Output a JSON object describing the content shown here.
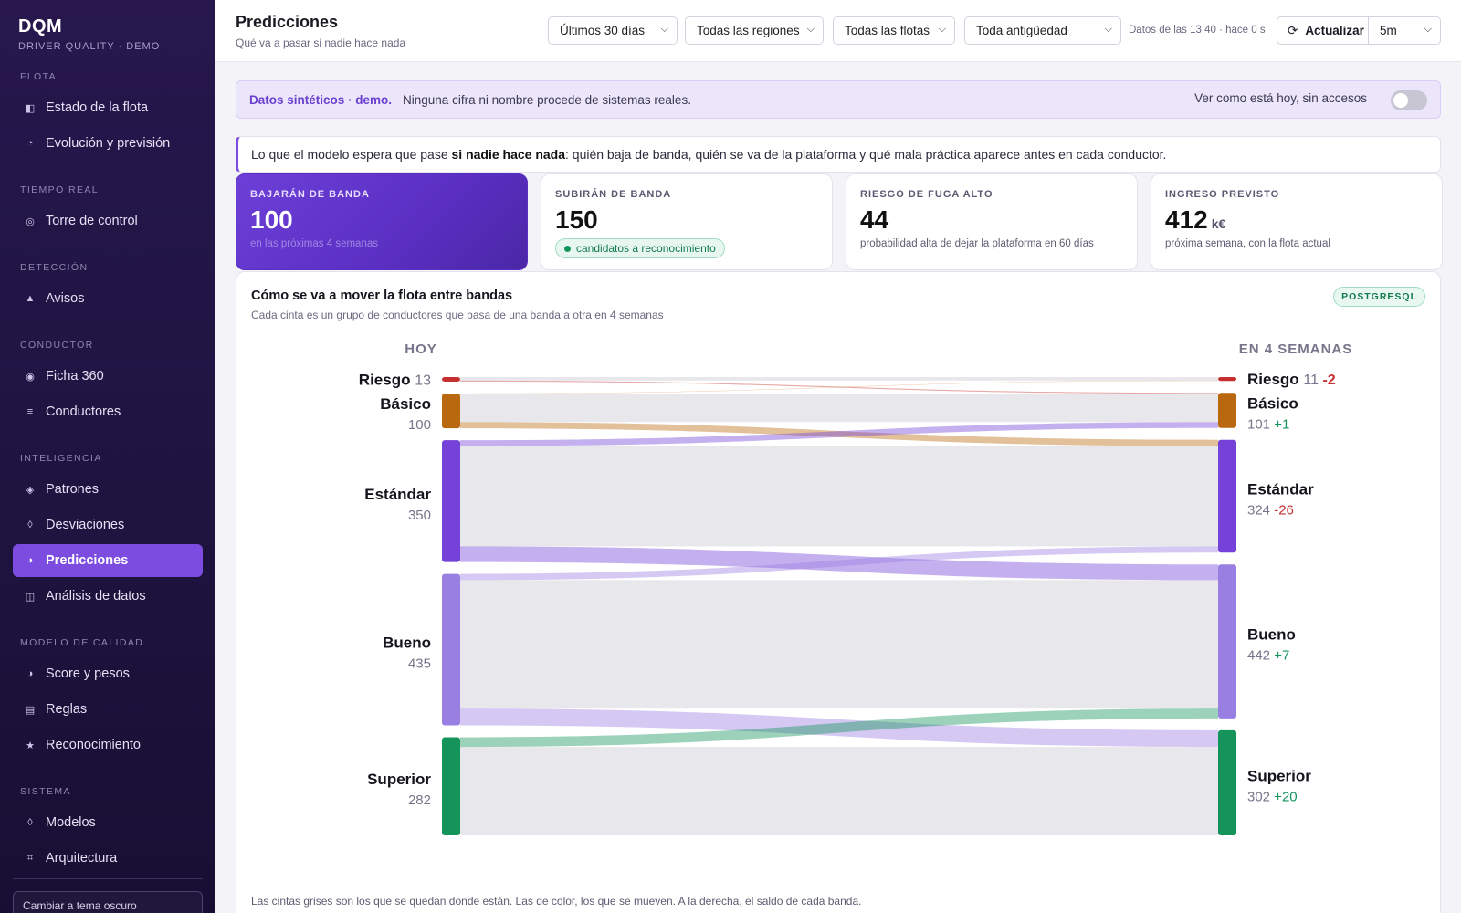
{
  "sidebar": {
    "brand": "DQM",
    "brand_sub": "DRIVER QUALITY · DEMO",
    "sections": [
      {
        "title": "FLOTA",
        "items": [
          {
            "label": "Estado de la flota",
            "icon": "panel-icon"
          },
          {
            "label": "Evolución y previsión",
            "icon": "pie-icon"
          }
        ]
      },
      {
        "title": "TIEMPO REAL",
        "items": [
          {
            "label": "Torre de control",
            "icon": "target-icon"
          }
        ]
      },
      {
        "title": "DETECCIÓN",
        "items": [
          {
            "label": "Avisos",
            "icon": "triangle-icon"
          }
        ]
      },
      {
        "title": "CONDUCTOR",
        "items": [
          {
            "label": "Ficha 360",
            "icon": "record-icon"
          },
          {
            "label": "Conductores",
            "icon": "list-icon"
          }
        ]
      },
      {
        "title": "INTELIGENCIA",
        "items": [
          {
            "label": "Patrones",
            "icon": "diamond-icon"
          },
          {
            "label": "Desviaciones",
            "icon": "diamond-outline-icon"
          },
          {
            "label": "Predicciones",
            "icon": "half-circle-icon",
            "active": true
          },
          {
            "label": "Análisis de datos",
            "icon": "grid-icon"
          }
        ]
      },
      {
        "title": "MODELO DE CALIDAD",
        "items": [
          {
            "label": "Score y pesos",
            "icon": "half-circle-icon"
          },
          {
            "label": "Reglas",
            "icon": "table-icon"
          },
          {
            "label": "Reconocimiento",
            "icon": "star-icon"
          }
        ]
      },
      {
        "title": "SISTEMA",
        "items": [
          {
            "label": "Modelos",
            "icon": "diamond-outline-icon"
          },
          {
            "label": "Arquitectura",
            "icon": "hash-icon"
          }
        ]
      }
    ],
    "theme_button": "Cambiar a tema oscuro"
  },
  "header": {
    "title": "Predicciones",
    "subtitle": "Qué va a pasar si nadie hace nada",
    "filters": {
      "period": "Últimos 30 días",
      "region": "Todas las regiones",
      "fleet": "Todas las flotas",
      "seniority": "Toda antigüedad"
    },
    "data_time": "Datos de las 13:40 · hace 0 s",
    "refresh_label": "Actualizar",
    "refresh_icon": "refresh-icon",
    "interval": "5m"
  },
  "banner": {
    "strong": "Datos sintéticos · demo.",
    "text": "Ninguna cifra ni nombre procede de sistemas reales.",
    "toggle_label": "Ver como está hoy, sin accesos",
    "toggle_on": false
  },
  "info": {
    "prefix": "Lo que el modelo espera que pase ",
    "bold": "si nadie hace nada",
    "suffix": ": quién baja de banda, quién se va de la plataforma y qué mala práctica aparece antes en cada conductor."
  },
  "kpis": [
    {
      "label": "BAJARÁN DE BANDA",
      "value": "100",
      "unit": "",
      "note": "en las próximas 4 semanas"
    },
    {
      "label": "SUBIRÁN DE BANDA",
      "value": "150",
      "unit": "",
      "pill": "candidatos a reconocimiento"
    },
    {
      "label": "RIESGO DE FUGA ALTO",
      "value": "44",
      "unit": "",
      "note": "probabilidad alta de dejar la plataforma en 60 días"
    },
    {
      "label": "INGRESO PREVISTO",
      "value": "412",
      "unit": "k€",
      "note": "próxima semana, con la flota actual"
    }
  ],
  "sankey_card": {
    "title": "Cómo se va a mover la flota entre bandas",
    "subtitle": "Cada cinta es un grupo de conductores que pasa de una banda a otra en 4 semanas",
    "badge": "POSTGRESQL",
    "footnote": "Las cintas grises son los que se quedan donde están. Las de color, los que se mueven. A la derecha, el saldo de cada banda."
  },
  "chart_data": {
    "type": "sankey",
    "left_header": "HOY",
    "right_header": "EN 4 SEMANAS",
    "left_nodes": [
      {
        "name": "Riesgo",
        "value": 13,
        "color": "#c62f2f"
      },
      {
        "name": "Básico",
        "value": 100,
        "color": "#b9680f"
      },
      {
        "name": "Estándar",
        "value": 350,
        "color": "#7442d8"
      },
      {
        "name": "Bueno",
        "value": 435,
        "color": "#9a7fe3"
      },
      {
        "name": "Superior",
        "value": 282,
        "color": "#14935b"
      }
    ],
    "right_nodes": [
      {
        "name": "Riesgo",
        "value": 11,
        "delta": "-2",
        "delta_color": "#c62f2f",
        "color": "#c62f2f"
      },
      {
        "name": "Básico",
        "value": 101,
        "delta": "+1",
        "delta_color": "#14935b",
        "color": "#b9680f"
      },
      {
        "name": "Estándar",
        "value": 324,
        "delta": "-26",
        "delta_color": "#c62f2f",
        "color": "#7442d8"
      },
      {
        "name": "Bueno",
        "value": 442,
        "delta": "+7",
        "delta_color": "#14935b",
        "color": "#9a7fe3"
      },
      {
        "name": "Superior",
        "value": 302,
        "delta": "+20",
        "delta_color": "#14935b",
        "color": "#14935b"
      }
    ],
    "links": [
      {
        "from": "Riesgo",
        "to": "Riesgo",
        "value": 10
      },
      {
        "from": "Riesgo",
        "to": "Básico",
        "value": 3
      },
      {
        "from": "Básico",
        "to": "Riesgo",
        "value": 1
      },
      {
        "from": "Básico",
        "to": "Básico",
        "value": 81
      },
      {
        "from": "Básico",
        "to": "Estándar",
        "value": 18
      },
      {
        "from": "Estándar",
        "to": "Básico",
        "value": 17
      },
      {
        "from": "Estándar",
        "to": "Estándar",
        "value": 288
      },
      {
        "from": "Estándar",
        "to": "Bueno",
        "value": 45
      },
      {
        "from": "Bueno",
        "to": "Estándar",
        "value": 18
      },
      {
        "from": "Bueno",
        "to": "Bueno",
        "value": 369
      },
      {
        "from": "Bueno",
        "to": "Superior",
        "value": 48
      },
      {
        "from": "Superior",
        "to": "Bueno",
        "value": 28
      },
      {
        "from": "Superior",
        "to": "Superior",
        "value": 254
      }
    ]
  }
}
